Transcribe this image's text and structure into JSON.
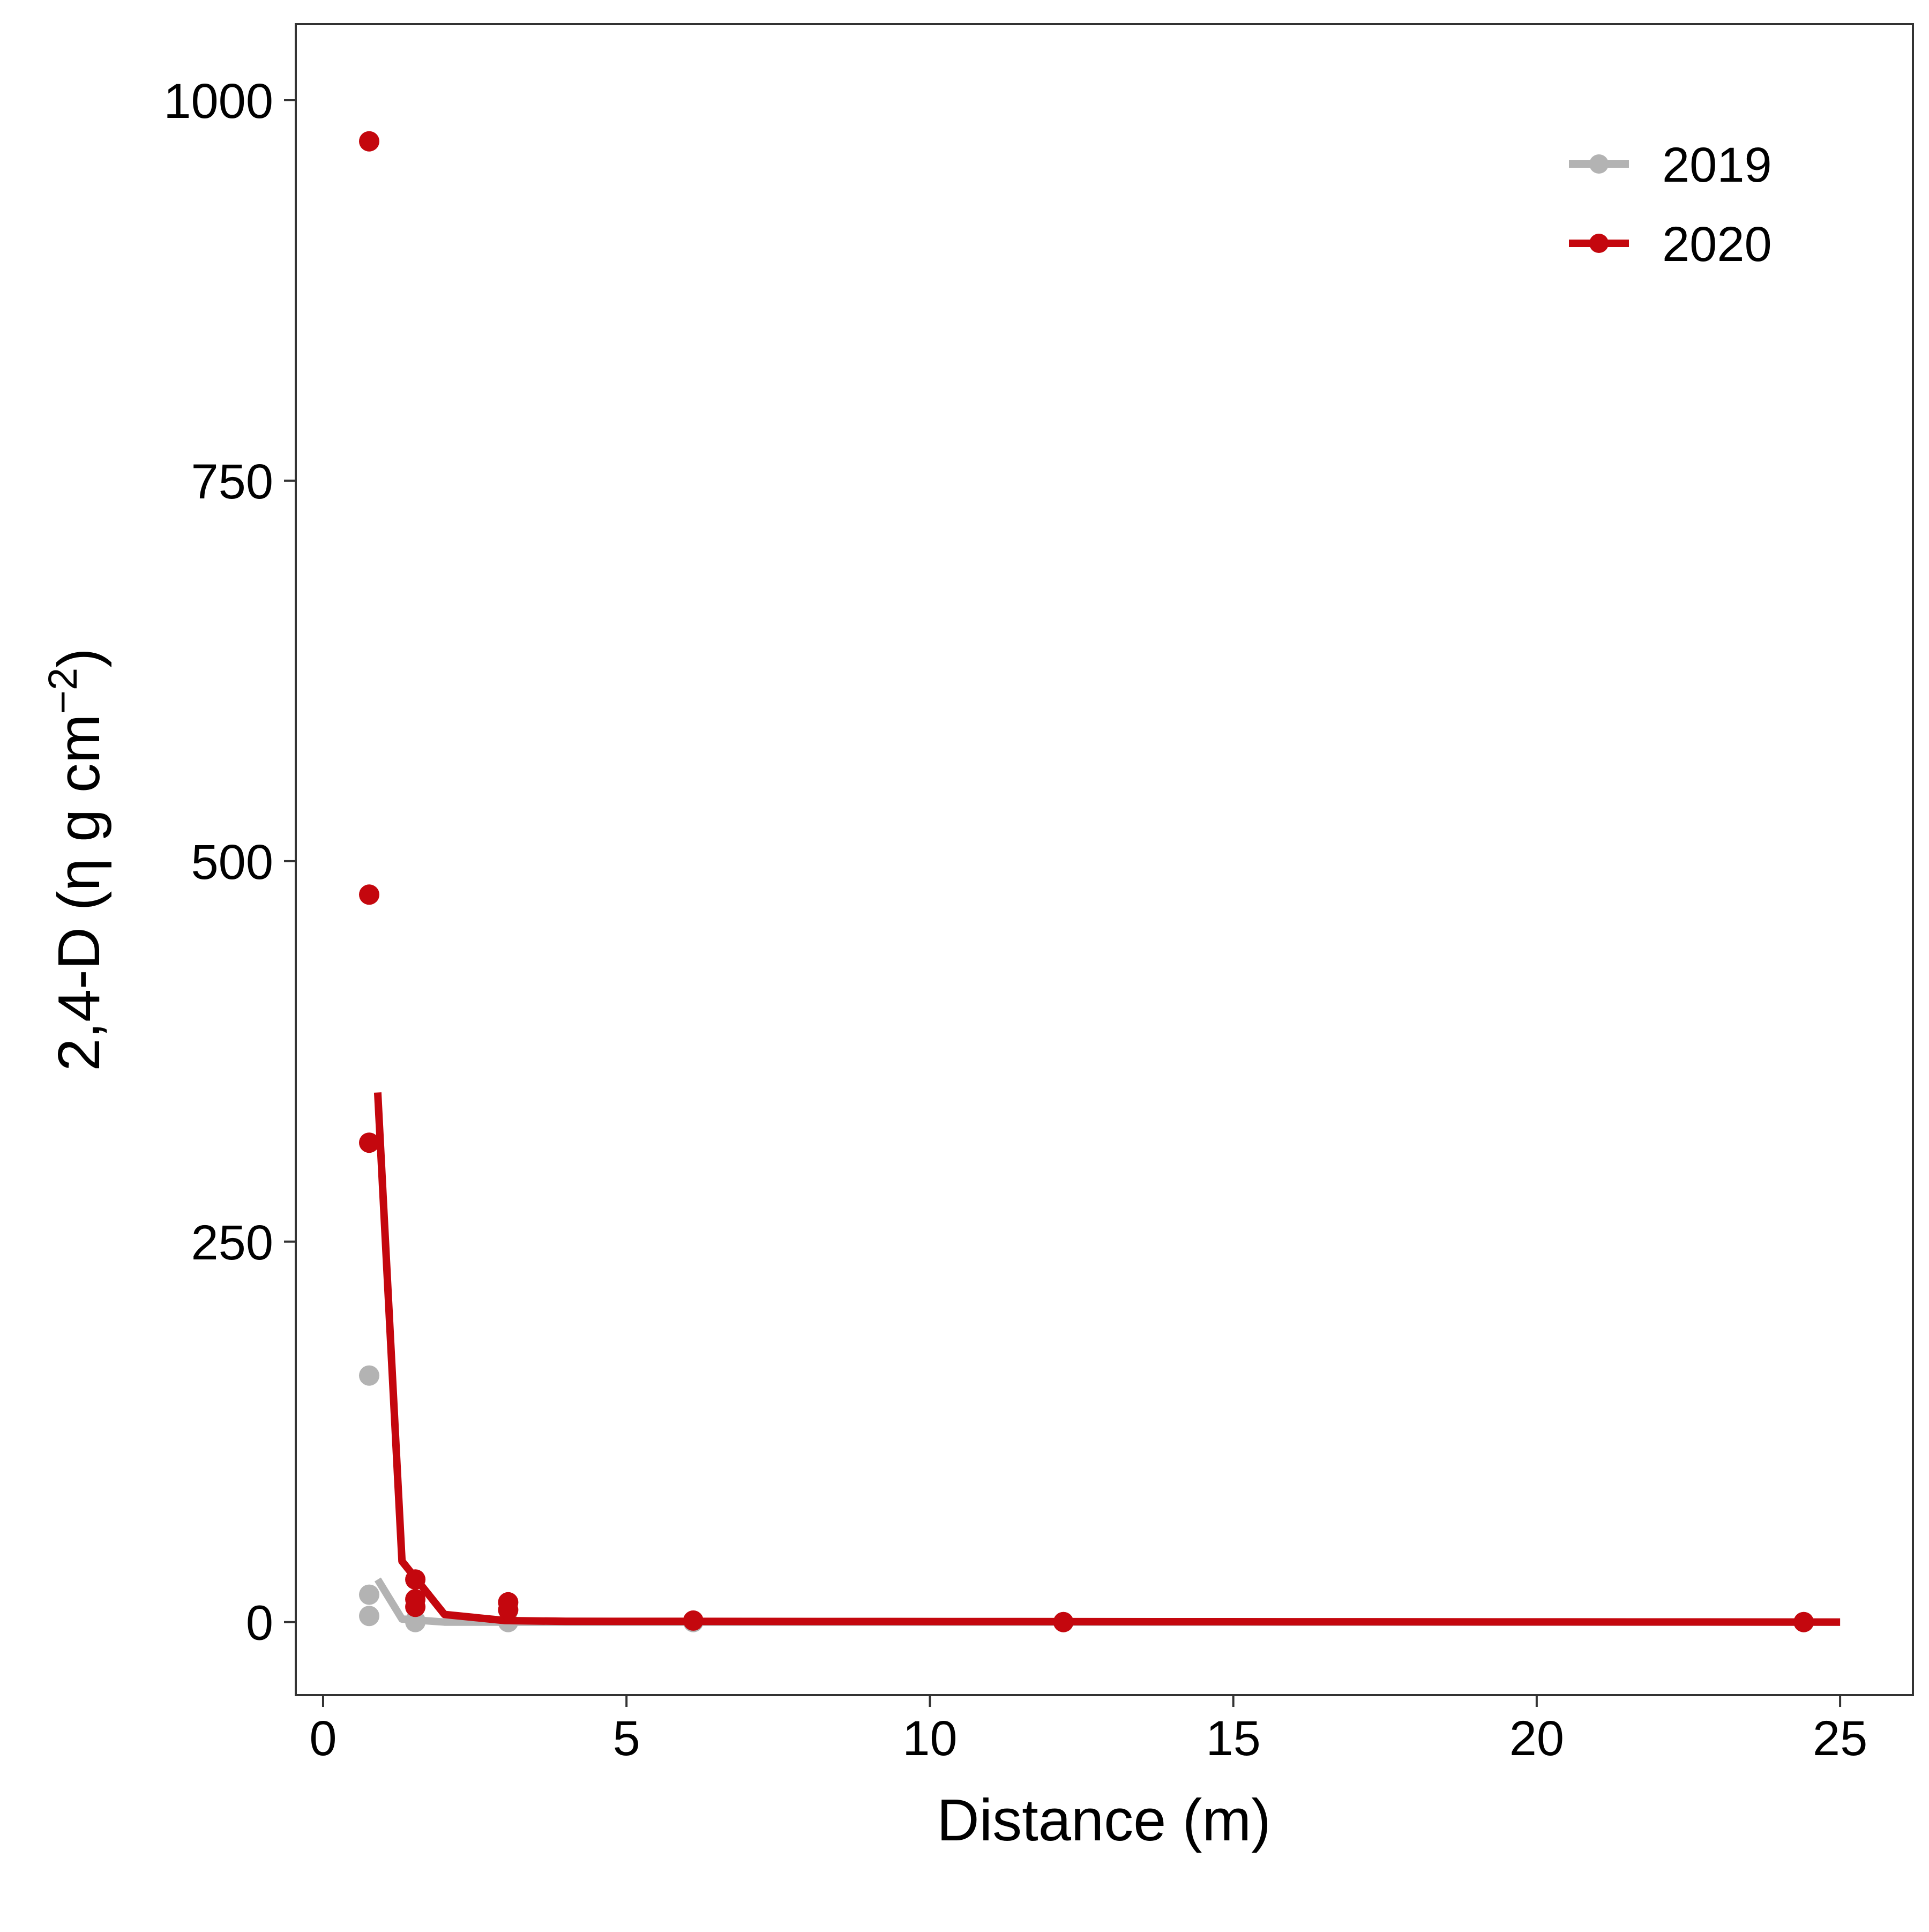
{
  "chart_data": {
    "type": "scatter",
    "title": "",
    "xlabel": "Distance (m)",
    "ylabel": "2,4-D (η g cm",
    "ylabel_superscript": "−2",
    "ylabel_close": ")",
    "xlim": [
      -0.45,
      26.2
    ],
    "ylim": [
      -48,
      1050
    ],
    "xticks": [
      0,
      5,
      10,
      15,
      20,
      25
    ],
    "yticks": [
      0,
      250,
      500,
      750,
      1000
    ],
    "grid": false,
    "legend_position": "top-right",
    "series": [
      {
        "name": "2019",
        "color": "#b3b3b3",
        "points": [
          {
            "x": 0.76,
            "y": 162
          },
          {
            "x": 0.76,
            "y": 18
          },
          {
            "x": 0.76,
            "y": 4
          },
          {
            "x": 1.52,
            "y": 1
          },
          {
            "x": 1.52,
            "y": 0
          },
          {
            "x": 3.05,
            "y": 0
          },
          {
            "x": 6.1,
            "y": 0
          },
          {
            "x": 12.2,
            "y": 0
          },
          {
            "x": 24.4,
            "y": 0
          }
        ],
        "fit": [
          {
            "x": 0.9,
            "y": 28
          },
          {
            "x": 1.3,
            "y": 2
          },
          {
            "x": 2.0,
            "y": 0
          },
          {
            "x": 3.05,
            "y": 0
          },
          {
            "x": 25.0,
            "y": 0
          }
        ]
      },
      {
        "name": "2020",
        "color": "#c4070e",
        "points": [
          {
            "x": 0.76,
            "y": 973
          },
          {
            "x": 0.76,
            "y": 478
          },
          {
            "x": 0.76,
            "y": 315
          },
          {
            "x": 1.52,
            "y": 28
          },
          {
            "x": 1.52,
            "y": 15
          },
          {
            "x": 1.52,
            "y": 10
          },
          {
            "x": 3.05,
            "y": 13
          },
          {
            "x": 3.05,
            "y": 8
          },
          {
            "x": 6.1,
            "y": 1
          },
          {
            "x": 12.2,
            "y": 0
          },
          {
            "x": 24.4,
            "y": 0
          }
        ],
        "fit": [
          {
            "x": 0.9,
            "y": 348
          },
          {
            "x": 1.3,
            "y": 40
          },
          {
            "x": 2.0,
            "y": 5
          },
          {
            "x": 3.0,
            "y": 1
          },
          {
            "x": 4.0,
            "y": 0.5
          },
          {
            "x": 25.0,
            "y": 0
          }
        ]
      }
    ]
  }
}
